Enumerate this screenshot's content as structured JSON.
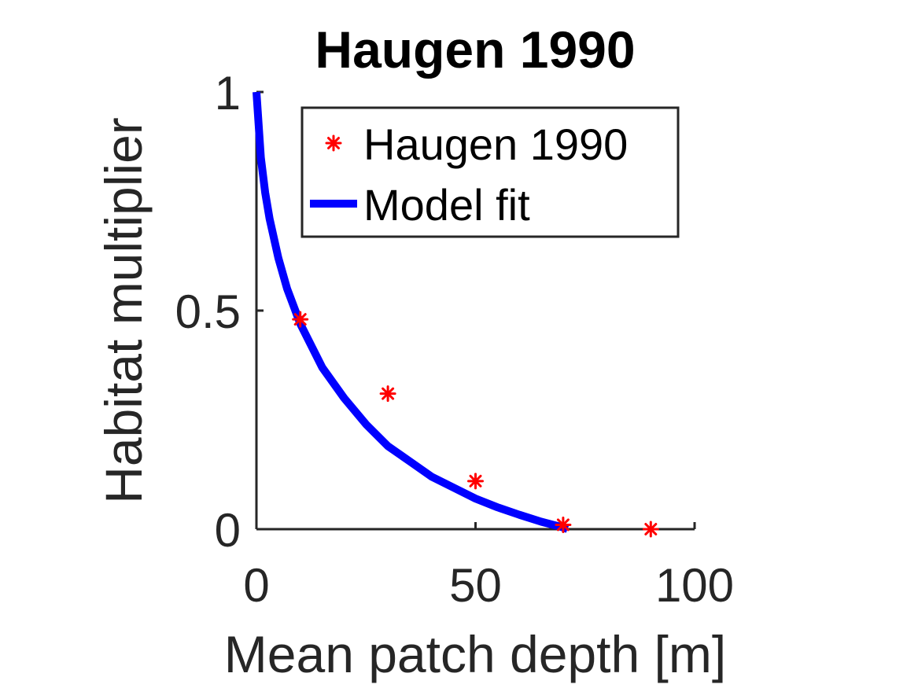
{
  "chart_data": {
    "type": "scatter",
    "title": "Haugen 1990",
    "xlabel": "Mean patch depth [m]",
    "ylabel": "Habitat multiplier",
    "xlim": [
      0,
      100
    ],
    "ylim": [
      0,
      1
    ],
    "xticks": [
      0,
      50,
      100
    ],
    "yticks": [
      0,
      0.5,
      1
    ],
    "x_tick_labels": [
      "0",
      "50",
      "100"
    ],
    "y_tick_labels": [
      "0",
      "0.5",
      "1"
    ],
    "grid": false,
    "legend": {
      "position": "top-right",
      "boxed": true
    },
    "series": [
      {
        "name": "Haugen 1990",
        "kind": "points",
        "marker": "asterisk",
        "color": "#ff0000",
        "x": [
          10,
          30,
          50,
          70,
          90
        ],
        "y": [
          0.48,
          0.31,
          0.11,
          0.01,
          0.0
        ]
      },
      {
        "name": "Model fit",
        "kind": "line",
        "color": "#0000ff",
        "x": [
          0,
          1,
          2,
          3,
          5,
          7,
          10,
          15,
          20,
          25,
          30,
          35,
          40,
          45,
          50,
          55,
          60,
          65,
          70,
          71
        ],
        "y": [
          1.0,
          0.85,
          0.77,
          0.71,
          0.62,
          0.55,
          0.47,
          0.37,
          0.3,
          0.24,
          0.19,
          0.155,
          0.12,
          0.095,
          0.07,
          0.05,
          0.033,
          0.017,
          0.004,
          0.0
        ]
      }
    ]
  }
}
